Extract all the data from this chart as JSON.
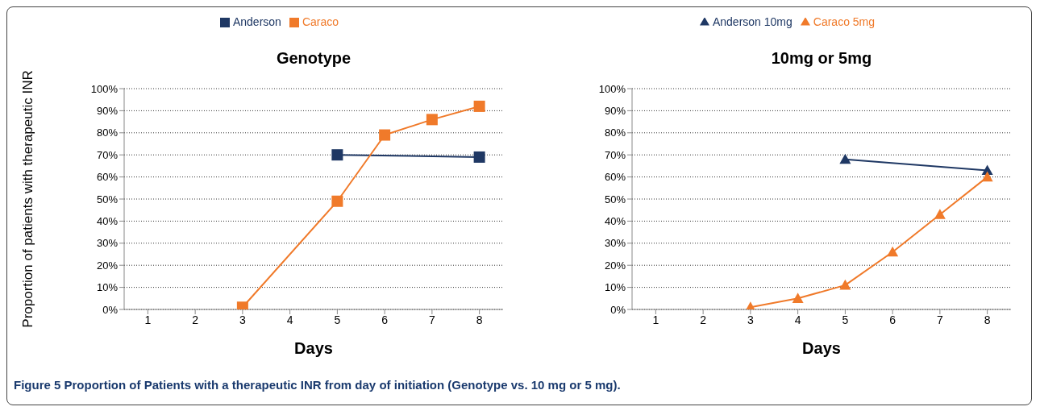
{
  "chart_data": [
    {
      "type": "line",
      "title": "Genotype",
      "xlabel": "Days",
      "ylabel": "Proportion of patients with therapeutic INR",
      "categories": [
        "1",
        "2",
        "3",
        "4",
        "5",
        "6",
        "7",
        "8"
      ],
      "series": [
        {
          "name": "Anderson",
          "color": "#1f3864",
          "values": [
            null,
            null,
            null,
            null,
            70,
            null,
            null,
            69
          ]
        },
        {
          "name": "Caraco",
          "color": "#f07a2a",
          "values": [
            null,
            null,
            1,
            null,
            49,
            79,
            86,
            92
          ]
        }
      ],
      "ylim": [
        0,
        100
      ],
      "yticks": [
        {
          "value": 0,
          "label": "0%"
        },
        {
          "value": 10,
          "label": "10%"
        },
        {
          "value": 20,
          "label": "20%"
        },
        {
          "value": 30,
          "label": "30%"
        },
        {
          "value": 40,
          "label": "40%"
        },
        {
          "value": 50,
          "label": "50%"
        },
        {
          "value": 60,
          "label": "60%"
        },
        {
          "value": 70,
          "label": "70%"
        },
        {
          "value": 80,
          "label": "80%"
        },
        {
          "value": 90,
          "label": "90%"
        },
        {
          "value": 100,
          "label": "100%"
        }
      ],
      "grid": "y",
      "legend": "top",
      "marker": "square",
      "line_style": "solid",
      "annotations": [
        "Figure 5 Proportion of Patients with a therapeutic INR from day of initiation (Genotype vs. 10 mg or 5 mg)."
      ]
    },
    {
      "type": "line",
      "title": "10mg or 5mg",
      "xlabel": "Days",
      "categories": [
        "1",
        "2",
        "3",
        "4",
        "5",
        "6",
        "7",
        "8"
      ],
      "series": [
        {
          "name": "Anderson 10mg",
          "color": "#1f3864",
          "values": [
            null,
            null,
            null,
            null,
            68,
            null,
            null,
            63
          ]
        },
        {
          "name": "Caraco 5mg",
          "color": "#f07a2a",
          "values": [
            null,
            null,
            1,
            5,
            11,
            26,
            43,
            60
          ]
        }
      ],
      "ylim": [
        0,
        100
      ],
      "yticks": [
        {
          "value": 0,
          "label": "0%"
        },
        {
          "value": 10,
          "label": "10%"
        },
        {
          "value": 20,
          "label": "20%"
        },
        {
          "value": 30,
          "label": "30%"
        },
        {
          "value": 40,
          "label": "40%"
        },
        {
          "value": 50,
          "label": "50%"
        },
        {
          "value": 60,
          "label": "60%"
        },
        {
          "value": 70,
          "label": "70%"
        },
        {
          "value": 80,
          "label": "80%"
        },
        {
          "value": 90,
          "label": "90%"
        },
        {
          "value": 100,
          "label": "100%"
        }
      ],
      "grid": "y",
      "legend": "top",
      "marker": "triangle",
      "line_style": "solid"
    }
  ]
}
